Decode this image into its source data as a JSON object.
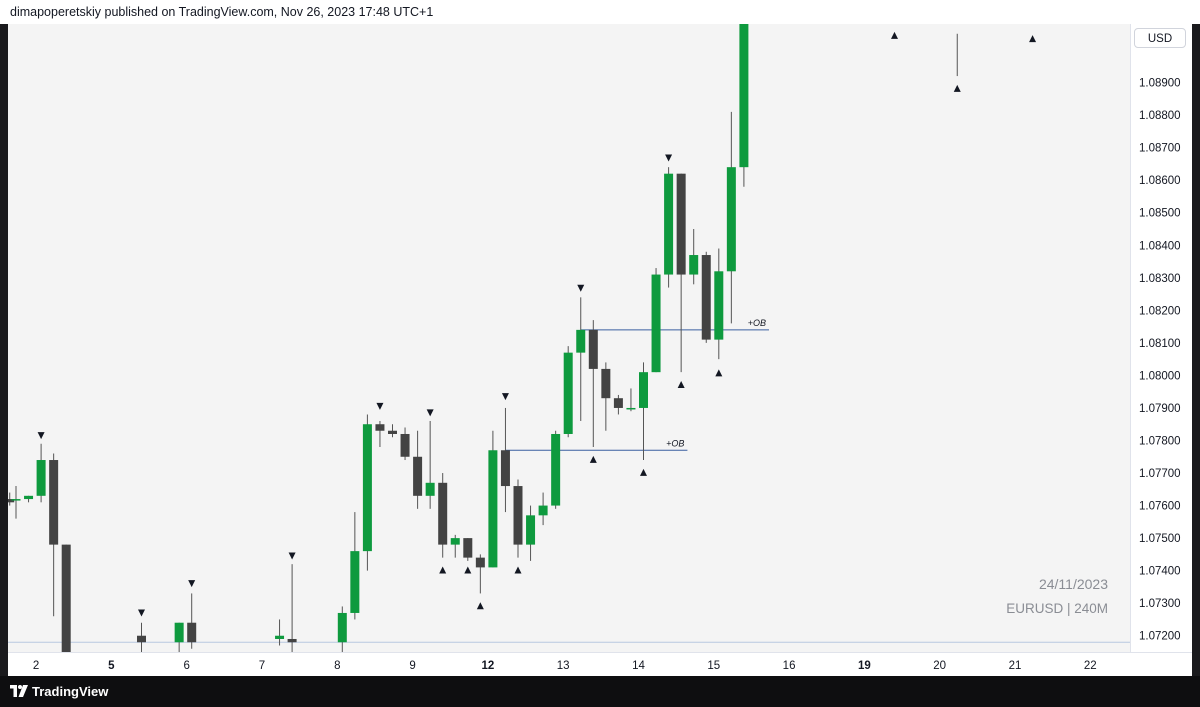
{
  "header": {
    "published_text": "dimapoperetskiy published on TradingView.com, Nov 26, 2023 17:48 UTC+1"
  },
  "price_axis": {
    "currency": "USD"
  },
  "watermark": {
    "date": "24/11/2023",
    "symbol": "EURUSD | 240M"
  },
  "footer": {
    "brand": "TradingView"
  },
  "colors": {
    "bull": "#0e9a3e",
    "bear": "#434343",
    "ob_line": "#3a5fa0",
    "background": "#f4f4f4"
  },
  "chart_data": {
    "type": "candlestick",
    "symbol": "EURUSD",
    "timeframe": "240M",
    "ylim": [
      1.0715,
      1.0908
    ],
    "y_ticks": [
      "1.08900",
      "1.08800",
      "1.08700",
      "1.08600",
      "1.08500",
      "1.08400",
      "1.08300",
      "1.08200",
      "1.08100",
      "1.08000",
      "1.07900",
      "1.07800",
      "1.07700",
      "1.07600",
      "1.07500",
      "1.07400",
      "1.07300",
      "1.07200"
    ],
    "y_extra_tick": "1.00000",
    "x_ticks": [
      {
        "label": "2",
        "bold": false,
        "bar": 1.6
      },
      {
        "label": "5",
        "bold": true,
        "bar": 7.6
      },
      {
        "label": "6",
        "bold": false,
        "bar": 13.6
      },
      {
        "label": "7",
        "bold": false,
        "bar": 19.6
      },
      {
        "label": "8",
        "bold": false,
        "bar": 25.6
      },
      {
        "label": "9",
        "bold": false,
        "bar": 31.6
      },
      {
        "label": "12",
        "bold": true,
        "bar": 37.6
      },
      {
        "label": "13",
        "bold": false,
        "bar": 43.6
      },
      {
        "label": "14",
        "bold": false,
        "bar": 49.6
      },
      {
        "label": "15",
        "bold": false,
        "bar": 55.6
      },
      {
        "label": "16",
        "bold": false,
        "bar": 61.6
      },
      {
        "label": "19",
        "bold": true,
        "bar": 67.6
      },
      {
        "label": "20",
        "bold": false,
        "bar": 73.6
      },
      {
        "label": "21",
        "bold": false,
        "bar": 79.6
      },
      {
        "label": "22",
        "bold": false,
        "bar": 85.6
      }
    ],
    "candles": [
      {
        "i": -0.5,
        "o": 1.0762,
        "h": 1.0764,
        "l": 1.076,
        "c": 1.0761
      },
      {
        "i": 0,
        "o": 1.0762,
        "h": 1.0766,
        "l": 1.0756,
        "c": 1.0762
      },
      {
        "i": 1,
        "o": 1.0762,
        "h": 1.0763,
        "l": 1.0761,
        "c": 1.0763
      },
      {
        "i": 2,
        "o": 1.0763,
        "h": 1.0779,
        "l": 1.0761,
        "c": 1.0774
      },
      {
        "i": 3,
        "o": 1.0774,
        "h": 1.0776,
        "l": 1.0726,
        "c": 1.0748
      },
      {
        "i": 4,
        "o": 1.0748,
        "h": 1.0748,
        "l": 1.069,
        "c": 1.0695
      },
      {
        "i": 10,
        "o": 1.072,
        "h": 1.0724,
        "l": 1.0714,
        "c": 1.0718
      },
      {
        "i": 13,
        "o": 1.0718,
        "h": 1.0724,
        "l": 1.0715,
        "c": 1.0724
      },
      {
        "i": 14,
        "o": 1.0724,
        "h": 1.0733,
        "l": 1.0716,
        "c": 1.0718
      },
      {
        "i": 21,
        "o": 1.0719,
        "h": 1.0725,
        "l": 1.0717,
        "c": 1.072
      },
      {
        "i": 22,
        "o": 1.0719,
        "h": 1.0742,
        "l": 1.0715,
        "c": 1.0718
      },
      {
        "i": 26,
        "o": 1.0718,
        "h": 1.0729,
        "l": 1.0715,
        "c": 1.0727
      },
      {
        "i": 27,
        "o": 1.0727,
        "h": 1.0758,
        "l": 1.0725,
        "c": 1.0746
      },
      {
        "i": 28,
        "o": 1.0746,
        "h": 1.0788,
        "l": 1.074,
        "c": 1.0785
      },
      {
        "i": 29,
        "o": 1.0785,
        "h": 1.0786,
        "l": 1.0778,
        "c": 1.0783
      },
      {
        "i": 30,
        "o": 1.0783,
        "h": 1.0785,
        "l": 1.0781,
        "c": 1.0782
      },
      {
        "i": 31,
        "o": 1.0782,
        "h": 1.0784,
        "l": 1.0774,
        "c": 1.0775
      },
      {
        "i": 32,
        "o": 1.0775,
        "h": 1.0783,
        "l": 1.0759,
        "c": 1.0763
      },
      {
        "i": 33,
        "o": 1.0763,
        "h": 1.0786,
        "l": 1.0759,
        "c": 1.0767
      },
      {
        "i": 34,
        "o": 1.0767,
        "h": 1.077,
        "l": 1.0744,
        "c": 1.0748
      },
      {
        "i": 35,
        "o": 1.0748,
        "h": 1.0751,
        "l": 1.0744,
        "c": 1.075
      },
      {
        "i": 36,
        "o": 1.075,
        "h": 1.075,
        "l": 1.0743,
        "c": 1.0744
      },
      {
        "i": 37,
        "o": 1.0744,
        "h": 1.0745,
        "l": 1.0733,
        "c": 1.0741
      },
      {
        "i": 38,
        "o": 1.0741,
        "h": 1.0783,
        "l": 1.0741,
        "c": 1.0777
      },
      {
        "i": 39,
        "o": 1.0777,
        "h": 1.079,
        "l": 1.0758,
        "c": 1.0766
      },
      {
        "i": 40,
        "o": 1.0766,
        "h": 1.0768,
        "l": 1.0744,
        "c": 1.0748
      },
      {
        "i": 41,
        "o": 1.0748,
        "h": 1.076,
        "l": 1.0743,
        "c": 1.0757
      },
      {
        "i": 42,
        "o": 1.0757,
        "h": 1.0764,
        "l": 1.0754,
        "c": 1.076
      },
      {
        "i": 43,
        "o": 1.076,
        "h": 1.0783,
        "l": 1.0759,
        "c": 1.0782
      },
      {
        "i": 44,
        "o": 1.0782,
        "h": 1.0809,
        "l": 1.0781,
        "c": 1.0807
      },
      {
        "i": 45,
        "o": 1.0807,
        "h": 1.0824,
        "l": 1.0786,
        "c": 1.0814
      },
      {
        "i": 46,
        "o": 1.0814,
        "h": 1.0817,
        "l": 1.0778,
        "c": 1.0802
      },
      {
        "i": 47,
        "o": 1.0802,
        "h": 1.0804,
        "l": 1.0783,
        "c": 1.0793
      },
      {
        "i": 48,
        "o": 1.0793,
        "h": 1.0794,
        "l": 1.0788,
        "c": 1.079
      },
      {
        "i": 49,
        "o": 1.079,
        "h": 1.0796,
        "l": 1.0789,
        "c": 1.079
      },
      {
        "i": 50,
        "o": 1.079,
        "h": 1.0804,
        "l": 1.0774,
        "c": 1.0801
      },
      {
        "i": 51,
        "o": 1.0801,
        "h": 1.0833,
        "l": 1.0801,
        "c": 1.0831
      },
      {
        "i": 52,
        "o": 1.0831,
        "h": 1.0864,
        "l": 1.0827,
        "c": 1.0862
      },
      {
        "i": 53,
        "o": 1.0862,
        "h": 1.0862,
        "l": 1.0801,
        "c": 1.0831
      },
      {
        "i": 54,
        "o": 1.0831,
        "h": 1.0845,
        "l": 1.0828,
        "c": 1.0837
      },
      {
        "i": 55,
        "o": 1.0837,
        "h": 1.0838,
        "l": 1.081,
        "c": 1.0811
      },
      {
        "i": 56,
        "o": 1.0811,
        "h": 1.0839,
        "l": 1.0805,
        "c": 1.0832
      },
      {
        "i": 57,
        "o": 1.0832,
        "h": 1.0881,
        "l": 1.0816,
        "c": 1.0864
      },
      {
        "i": 58,
        "o": 1.0864,
        "h": 1.092,
        "l": 1.0858,
        "c": 1.091
      }
    ],
    "extra_wicks": [
      {
        "i": 75,
        "h": 1.0905,
        "l": 1.0892
      }
    ],
    "fractals": [
      {
        "i": -1,
        "type": "down",
        "price": 1.07665
      },
      {
        "i": 2,
        "type": "down",
        "price": 1.07815
      },
      {
        "i": 10,
        "type": "down",
        "price": 1.0727
      },
      {
        "i": 14,
        "type": "down",
        "price": 1.0736
      },
      {
        "i": 22,
        "type": "down",
        "price": 1.07445
      },
      {
        "i": 29,
        "type": "down",
        "price": 1.07905
      },
      {
        "i": 33,
        "type": "down",
        "price": 1.07885
      },
      {
        "i": 34,
        "type": "up",
        "price": 1.07402
      },
      {
        "i": 36,
        "type": "up",
        "price": 1.07402
      },
      {
        "i": 37,
        "type": "up",
        "price": 1.07292
      },
      {
        "i": 39,
        "type": "down",
        "price": 1.07935
      },
      {
        "i": 40,
        "type": "up",
        "price": 1.07402
      },
      {
        "i": 45,
        "type": "down",
        "price": 1.08268
      },
      {
        "i": 46,
        "type": "up",
        "price": 1.07742
      },
      {
        "i": 50,
        "type": "up",
        "price": 1.07702
      },
      {
        "i": 52,
        "type": "down",
        "price": 1.08668
      },
      {
        "i": 53,
        "type": "up",
        "price": 1.07972
      },
      {
        "i": 56,
        "type": "up",
        "price": 1.08008
      },
      {
        "i": 70,
        "type": "up",
        "price": 1.09045
      },
      {
        "i": 75,
        "type": "up",
        "price": 1.08882
      },
      {
        "i": 81,
        "type": "up",
        "price": 1.09035
      }
    ],
    "levels": [
      {
        "label": "+OB",
        "price": 1.0777,
        "i_from": 39,
        "i_to": 53.5
      },
      {
        "label": "+OB",
        "price": 1.0814,
        "i_from": 45,
        "i_to": 60
      }
    ],
    "bottom_line_price": 1.0718
  }
}
